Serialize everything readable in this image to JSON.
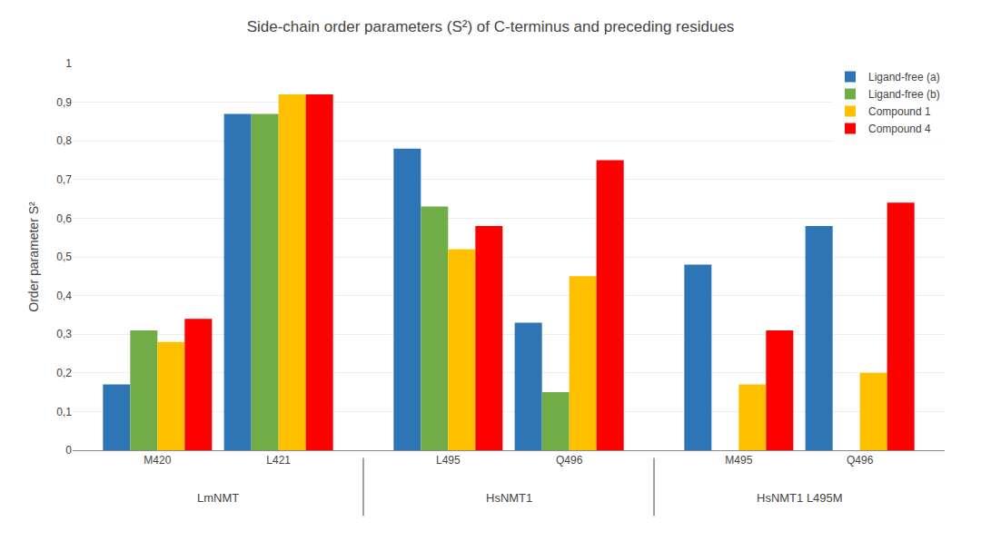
{
  "chart_data": {
    "type": "bar",
    "title": "Side-chain order parameters (S²) of C-terminus and preceding residues",
    "ylabel": "Order parameter S²",
    "categories": [
      "M420",
      "L421",
      "L495",
      "Q496",
      "M495",
      "Q496"
    ],
    "annotations": [
      "LmNMT",
      "HsNMT1",
      "HsNMT1 L495M"
    ],
    "series": [
      {
        "name": "Ligand-free (a)",
        "color": "#2e75b6",
        "values": [
          0.17,
          0.87,
          0.78,
          0.33,
          0.48,
          0.58
        ]
      },
      {
        "name": "Ligand-free (b)",
        "color": "#70ad47",
        "values": [
          0.31,
          0.87,
          0.63,
          0.15,
          null,
          null
        ]
      },
      {
        "name": "Compound 1",
        "color": "#ffc000",
        "values": [
          0.28,
          0.92,
          0.52,
          0.45,
          0.17,
          0.2
        ]
      },
      {
        "name": "Compound 4",
        "color": "#ff0000",
        "values": [
          0.34,
          0.92,
          0.58,
          0.75,
          0.31,
          0.64
        ]
      }
    ],
    "ylim": [
      0,
      1.0
    ],
    "yticks": [
      0,
      {
        "value": 0.1,
        "label": "0,1"
      },
      {
        "value": 0.2,
        "label": "0,2"
      },
      {
        "value": 0.3,
        "label": "0,3"
      },
      {
        "value": 0.4,
        "label": "0,4"
      },
      {
        "value": 0.5,
        "label": "0,5"
      },
      {
        "value": 0.6,
        "label": "0,6"
      },
      {
        "value": 0.7,
        "label": "0,7"
      },
      {
        "value": 0.8,
        "label": "0,8"
      },
      {
        "value": 0.9,
        "label": "0,9"
      },
      1
    ],
    "grid": true,
    "legend": "upper right"
  }
}
